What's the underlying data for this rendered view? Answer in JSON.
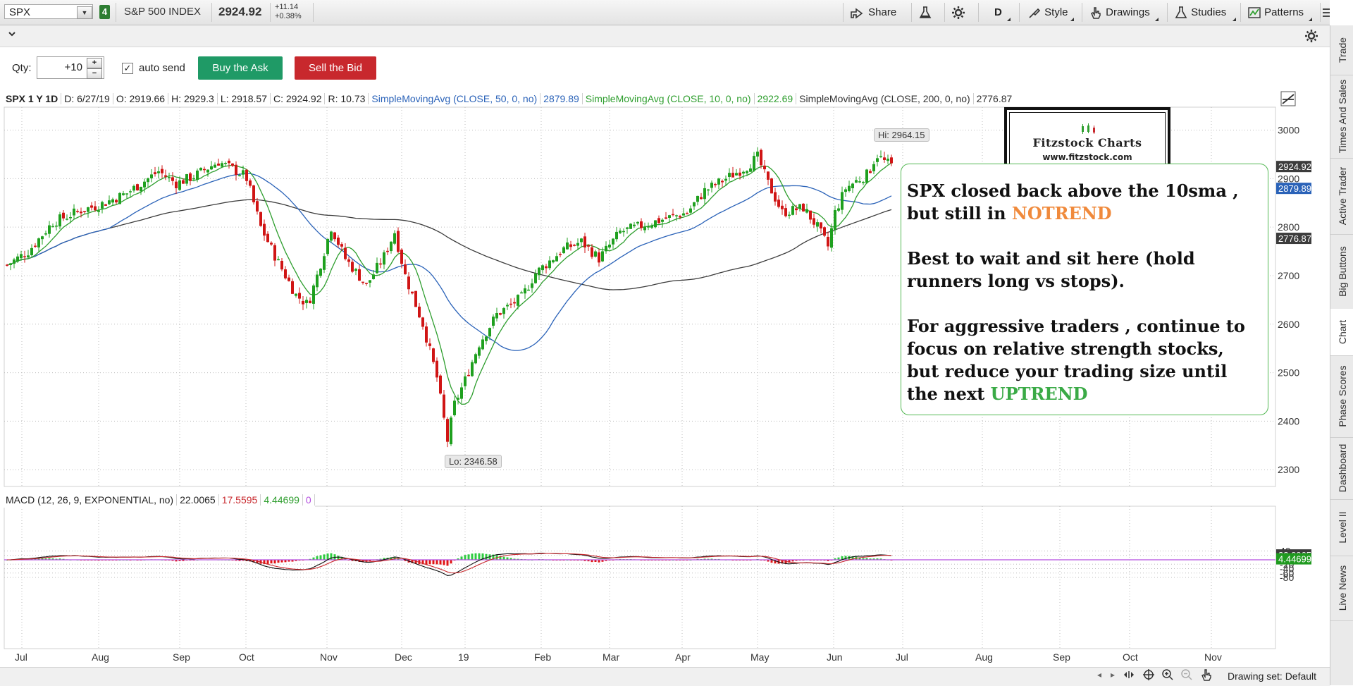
{
  "toolbar": {
    "symbol": "SPX",
    "link_badge": "4",
    "description": "S&P 500 INDEX",
    "last": "2924.92",
    "net_change": "+11.14",
    "pct_change": "+0.38%",
    "share": "Share",
    "aggregation": "D",
    "style": "Style",
    "drawings": "Drawings",
    "studies": "Studies",
    "patterns": "Patterns"
  },
  "order": {
    "qty_label": "Qty:",
    "qty_value": "+10",
    "autosend_label": "auto send",
    "autosend_checked": true,
    "buy_label": "Buy the Ask",
    "sell_label": "Sell the Bid"
  },
  "chart_header": {
    "title": "SPX 1 Y 1D",
    "date": "D: 6/27/19",
    "open": "O: 2919.66",
    "high": "H: 2929.3",
    "low": "L: 2918.57",
    "close": "C: 2924.92",
    "range": "R: 10.73",
    "sma50_label": "SimpleMovingAvg (CLOSE, 50, 0, no)",
    "sma50_value": "2879.89",
    "sma10_label": "SimpleMovingAvg (CLOSE, 10, 0, no)",
    "sma10_value": "2922.69",
    "sma200_label": "SimpleMovingAvg (CLOSE, 200, 0, no)",
    "sma200_value": "2776.87"
  },
  "macd_header": {
    "label": "MACD (12, 26, 9, EXPONENTIAL, no)",
    "value": "22.0065",
    "avg": "17.5595",
    "diff": "4.44699",
    "zero": "0"
  },
  "hi_label": "Hi: 2964.15",
  "lo_label": "Lo: 2346.58",
  "colors": {
    "candle_up": "#1fa01f",
    "candle_down": "#d01515",
    "sma10": "#2e9e2e",
    "sma50": "#2a62b8",
    "sma200": "#3c3c3c",
    "macd_value": "#111111",
    "macd_avg": "#c8282d",
    "zero_line": "#b44ee0",
    "annotation_notrend": "#f08a3c",
    "annotation_uptrend": "#3aaa46"
  },
  "annotation": {
    "line1a": "SPX closed back above the 10sma , but still in ",
    "line1b": "NOTREND",
    "line2": "Best to wait and sit here (hold runners long vs stops).",
    "line3a": "For aggressive traders , continue to focus on relative strength stocks, but reduce your trading size until the next ",
    "line3b": "UPTREND"
  },
  "logo": {
    "title": "Fitzstock Charts",
    "url": "www.fitzstock.com"
  },
  "price_axis": {
    "ticks": [
      "3000",
      "2900",
      "2800",
      "2700",
      "2600",
      "2500",
      "2400",
      "2300"
    ],
    "tag_last": "2924.92",
    "tag_sma50": "2879.89",
    "tag_sma200": "2776.87"
  },
  "macd_axis": {
    "ticks": [
      "40",
      "20",
      "",
      "-20",
      "-40",
      "-60",
      "-80"
    ],
    "tag_value": "22.0065",
    "tag_diff": "4.44699"
  },
  "time_axis": [
    "Jul",
    "Aug",
    "Sep",
    "Oct",
    "Nov",
    "Dec",
    "19",
    "Feb",
    "Mar",
    "Apr",
    "May",
    "Jun",
    "Jul",
    "Aug",
    "Sep",
    "Oct",
    "Nov"
  ],
  "side_tabs": [
    "Trade",
    "Times And Sales",
    "Active Trader",
    "Big Buttons",
    "Chart",
    "Phase Scores",
    "Dashboard",
    "Level II",
    "Live News"
  ],
  "bottom": {
    "drawing_set": "Drawing set: Default"
  },
  "chart_data": {
    "type": "candlestick",
    "symbol": "SPX",
    "ylim": [
      2260,
      3060
    ],
    "high": 2964.15,
    "low": 2346.58,
    "close_series_key_points": [
      {
        "x": "Jul 2018",
        "y": 2720
      },
      {
        "x": "Aug 2018",
        "y": 2840
      },
      {
        "x": "Sep 2018",
        "y": 2905
      },
      {
        "x": "Oct 2018",
        "y": 2915
      },
      {
        "x": "Nov 2018",
        "y": 2640
      },
      {
        "x": "Dec 2018",
        "y": 2790
      },
      {
        "x": "Dec 24 2018",
        "y": 2351
      },
      {
        "x": "Jan 2019",
        "y": 2510
      },
      {
        "x": "Feb 2019",
        "y": 2705
      },
      {
        "x": "Mar 2019",
        "y": 2800
      },
      {
        "x": "Apr 2019",
        "y": 2870
      },
      {
        "x": "May 2019",
        "y": 2945
      },
      {
        "x": "Jun 2019",
        "y": 2745
      },
      {
        "x": "Jun 27 2019",
        "y": 2924.92
      }
    ],
    "macd": {
      "value": 22.0065,
      "avg": 17.5595,
      "diff": 4.44699,
      "ylim": [
        -80,
        45
      ]
    }
  }
}
